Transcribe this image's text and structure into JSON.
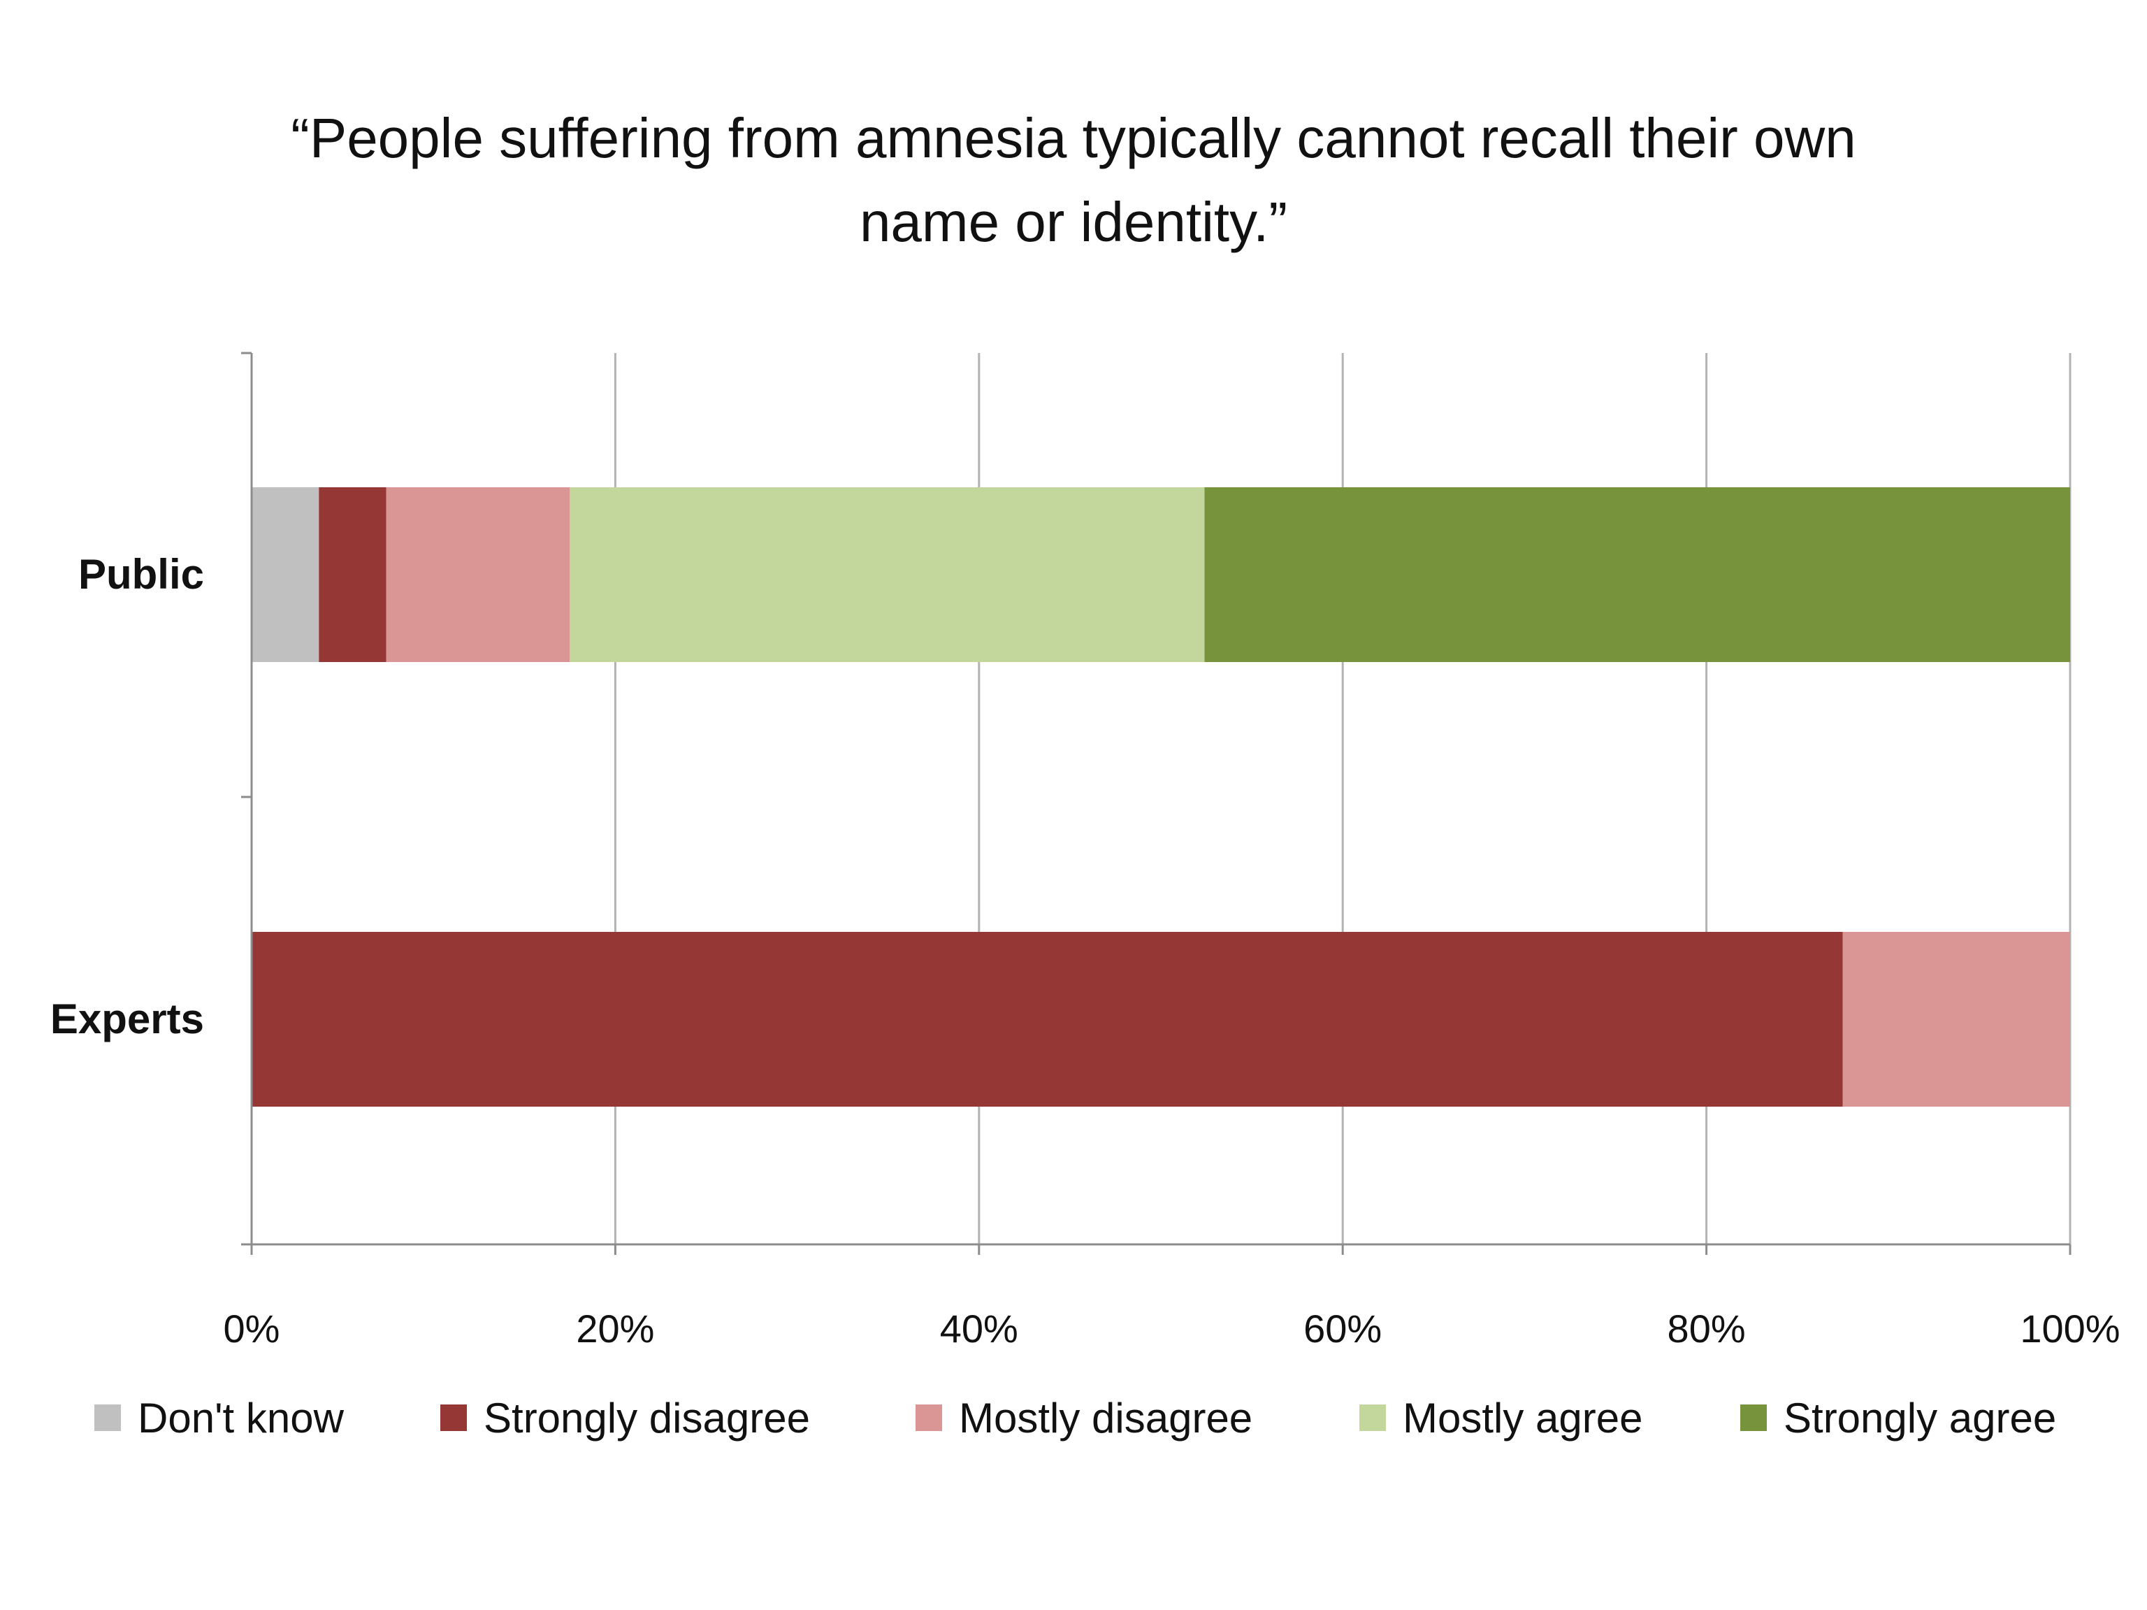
{
  "chart_data": {
    "type": "bar",
    "orientation": "horizontal",
    "stacked": true,
    "title_lines": [
      "“People suffering from amnesia typically cannot recall their own",
      "name or identity.”"
    ],
    "categories": [
      "Public",
      "Experts"
    ],
    "x_ticks": [
      "0%",
      "20%",
      "40%",
      "60%",
      "80%",
      "100%"
    ],
    "xlim": [
      0,
      100
    ],
    "grid": "vertical",
    "legend_position": "bottom",
    "series": [
      {
        "name": "Don't know",
        "color": "#c0c0c0",
        "values": [
          3.7,
          0
        ]
      },
      {
        "name": "Strongly disagree",
        "color": "#953735",
        "values": [
          3.7,
          87.5
        ]
      },
      {
        "name": "Mostly disagree",
        "color": "#d99694",
        "values": [
          10.1,
          12.5
        ]
      },
      {
        "name": "Mostly agree",
        "color": "#c3d69b",
        "values": [
          34.9,
          0
        ]
      },
      {
        "name": "Strongly agree",
        "color": "#77933c",
        "values": [
          47.6,
          0
        ]
      }
    ]
  }
}
